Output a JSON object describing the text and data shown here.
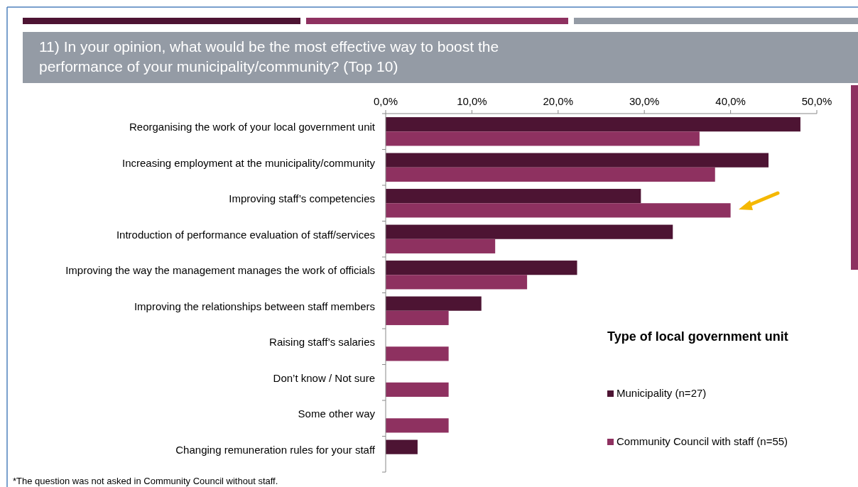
{
  "chart_data": {
    "type": "bar",
    "orientation": "horizontal",
    "title": "11) In your opinion, what would be the most effective way to boost the performance of your municipality/community? (Top 10)",
    "categories": [
      "Reorganising the work of your local government unit",
      "Increasing employment at the municipality/community",
      "Improving staff’s competencies",
      "Introduction of performance evaluation of staff/services",
      "Improving the way the management manages the work of officials",
      "Improving the relationships between staff members",
      "Raising staff’s salaries",
      "Don’t know / Not sure",
      "Some other way",
      "Changing remuneration rules for your staff"
    ],
    "series": [
      {
        "name": "Municipality  (n=27)",
        "color": "#4d1433",
        "values": [
          48.1,
          44.4,
          29.6,
          33.3,
          22.2,
          11.1,
          null,
          null,
          null,
          3.7
        ]
      },
      {
        "name": "Community Council with staff (n=55)",
        "color": "#8e3160",
        "values": [
          36.4,
          38.2,
          40.0,
          12.7,
          16.4,
          7.3,
          7.3,
          7.3,
          7.3,
          null
        ]
      }
    ],
    "xlim": [
      0,
      50
    ],
    "xticks": [
      {
        "value": 0,
        "label": "0,0%"
      },
      {
        "value": 10,
        "label": "10,0%"
      },
      {
        "value": 20,
        "label": "20,0%"
      },
      {
        "value": 30,
        "label": "30,0%"
      },
      {
        "value": 40,
        "label": "40,0%"
      },
      {
        "value": 50,
        "label": "50,0%"
      }
    ],
    "legend_title": "Type of local government unit",
    "legend": "right",
    "grid": false,
    "annotations": [
      "*The question was not asked in Community Council without staff."
    ]
  }
}
